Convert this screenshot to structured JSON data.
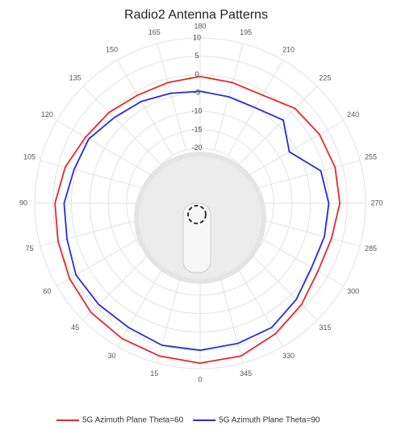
{
  "chart_data": {
    "type": "polar",
    "title": "Radio2 Antenna Patterns",
    "theta": [
      0,
      15,
      30,
      45,
      60,
      75,
      90,
      105,
      120,
      135,
      150,
      165,
      180,
      195,
      210,
      225,
      240,
      255,
      270,
      285,
      300,
      315,
      330,
      345
    ],
    "rlim": [
      -35,
      10
    ],
    "rticks": [
      -20,
      -15,
      -10,
      -5,
      0,
      5,
      10
    ],
    "series": [
      {
        "name": "5G Azimuth Plane Theta=60",
        "color": "#e8262b",
        "values": [
          8.5,
          8,
          7.5,
          7,
          6,
          5,
          4.5,
          3,
          1,
          0,
          -1,
          -1,
          -0.5,
          -1,
          -1,
          1.5,
          2.5,
          3,
          3,
          2,
          2,
          4,
          6,
          8
        ]
      },
      {
        "name": "5G Azimuth Plane Theta=90",
        "color": "#2a2ae0",
        "values": [
          5,
          5,
          4,
          4,
          4,
          2.5,
          2,
          0.5,
          0,
          -2,
          -3,
          -4,
          -4.5,
          -5,
          -5,
          -3,
          -7,
          -1,
          0,
          0,
          0,
          2,
          4,
          4.5
        ]
      }
    ]
  }
}
